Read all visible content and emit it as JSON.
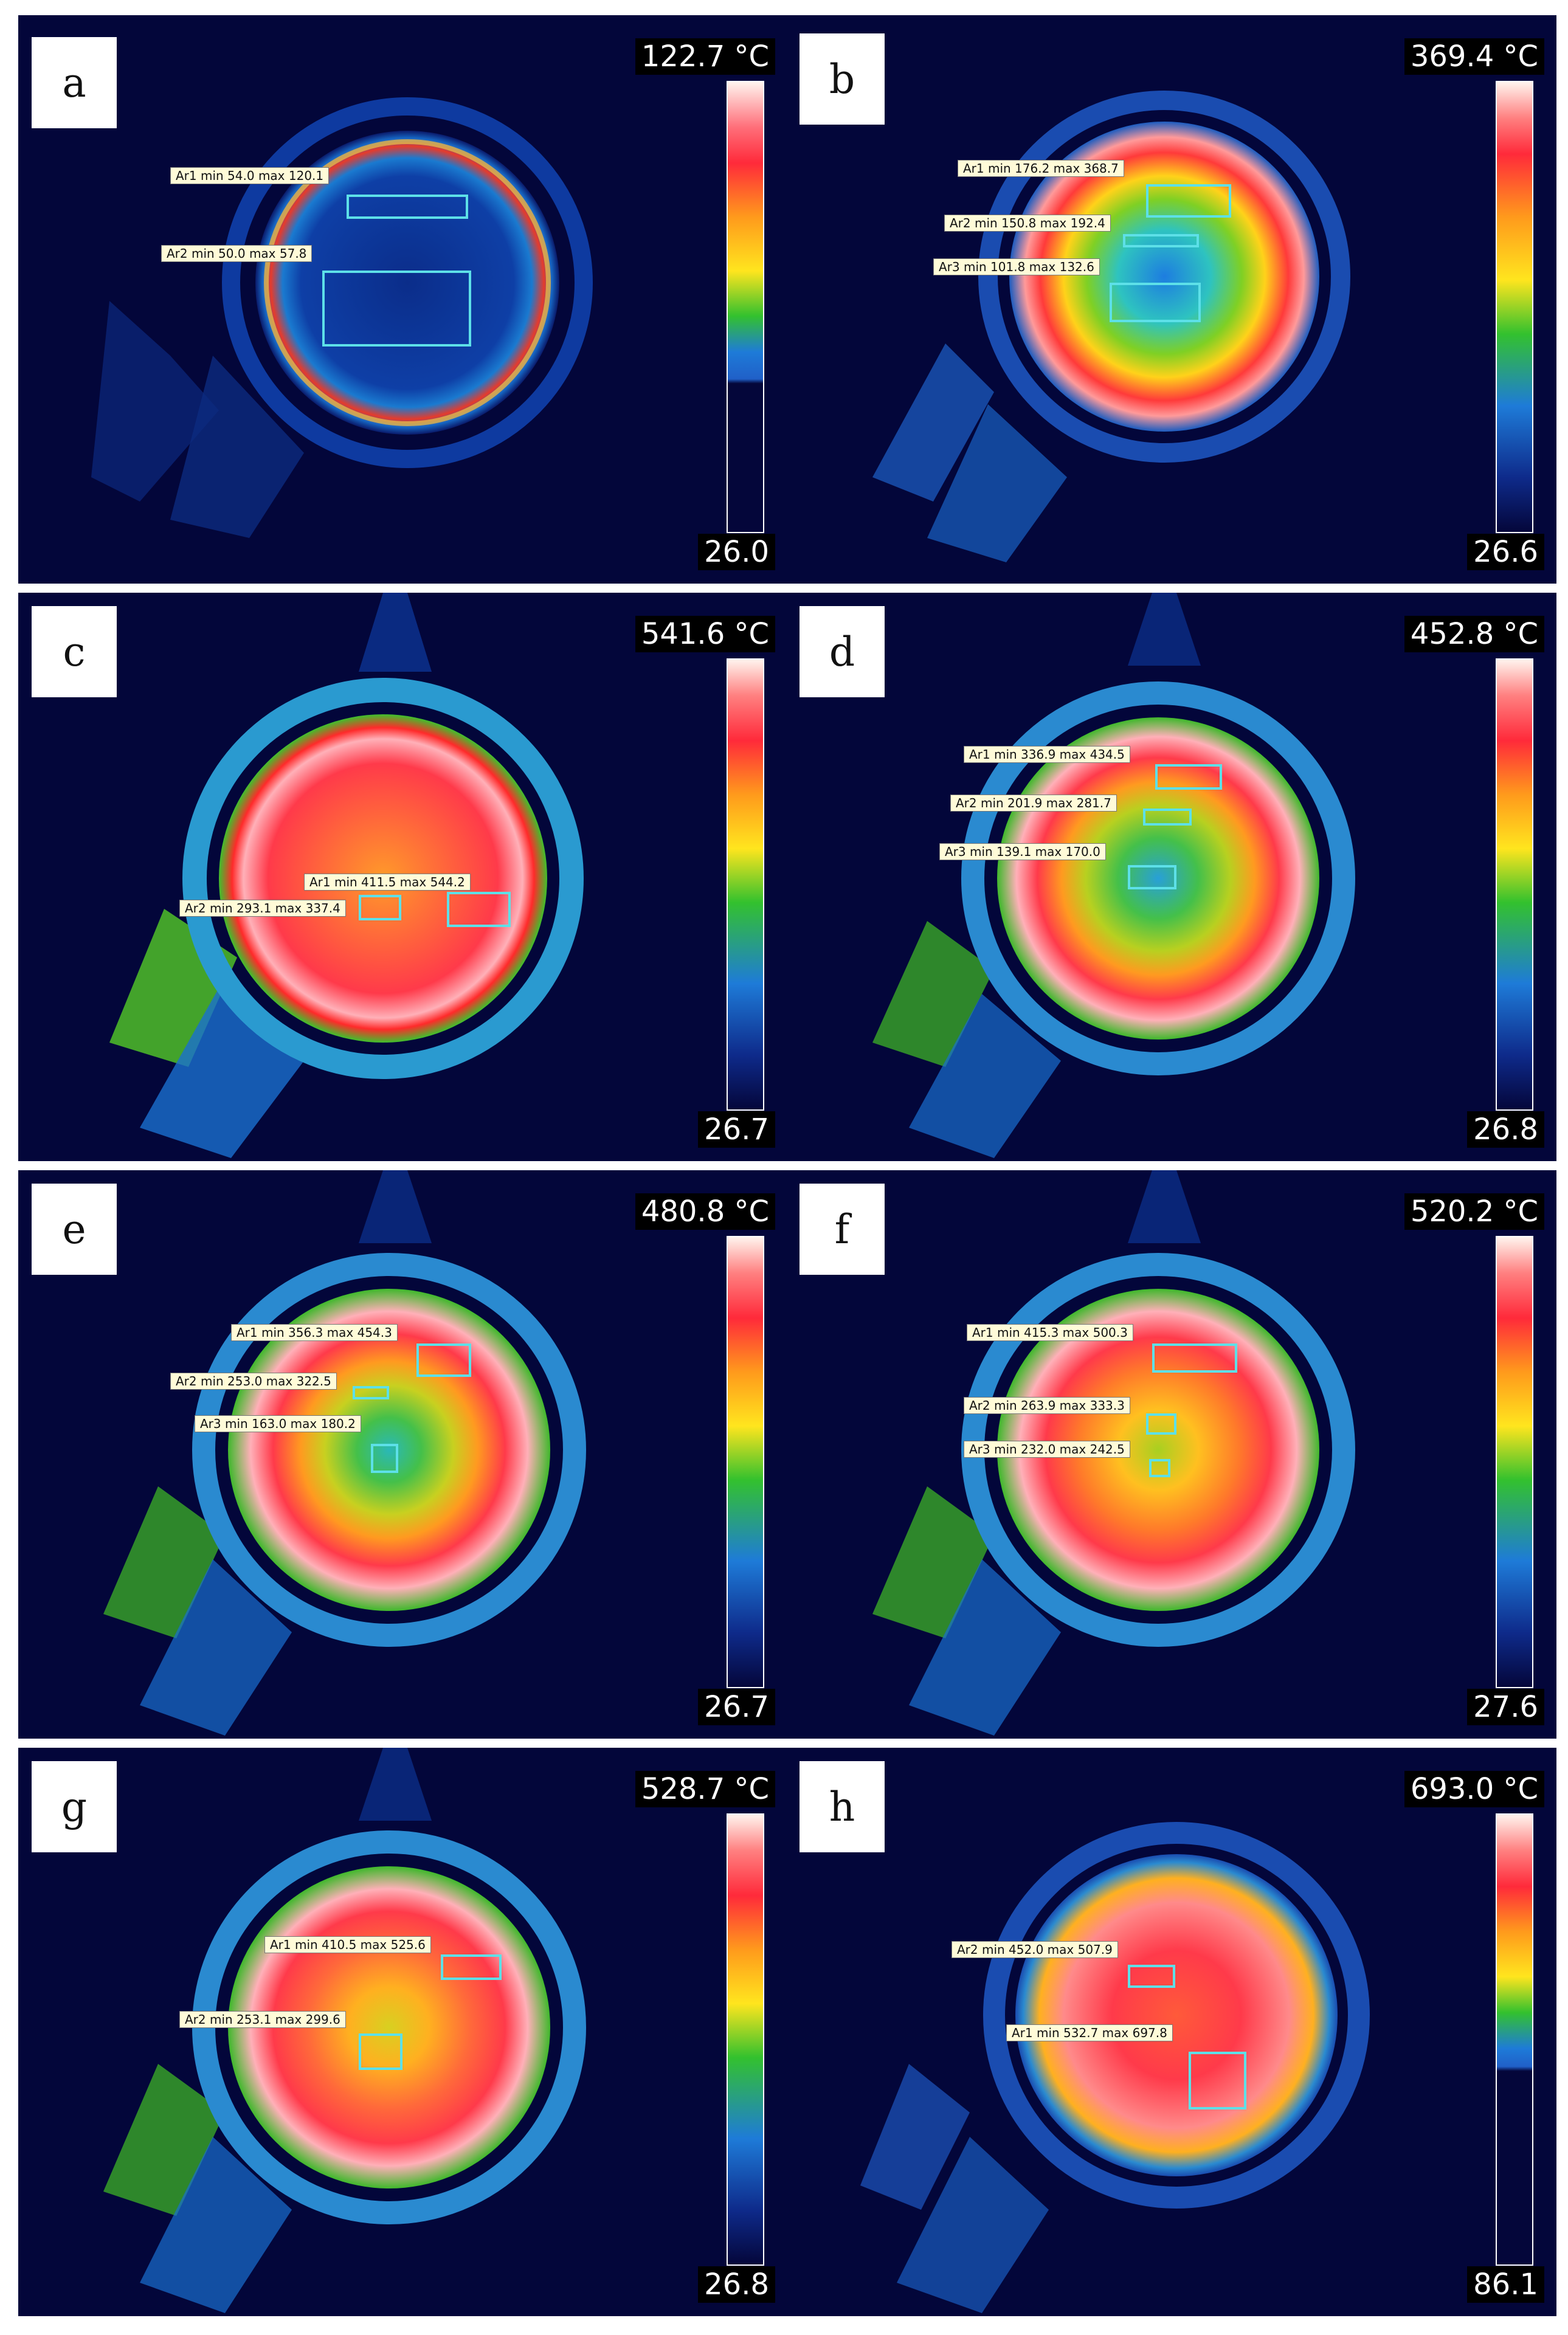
{
  "panels": [
    {
      "letter": "a",
      "scale_max": "122.7 °C",
      "scale_min": "26.0",
      "regions": [
        {
          "text": "Ar1 min 54.0 max 120.1"
        },
        {
          "text": "Ar2 min 50.0 max 57.8"
        }
      ]
    },
    {
      "letter": "b",
      "scale_max": "369.4 °C",
      "scale_min": "26.6",
      "regions": [
        {
          "text": "Ar1 min 176.2 max 368.7"
        },
        {
          "text": "Ar2 min 150.8 max 192.4"
        },
        {
          "text": "Ar3 min 101.8 max 132.6"
        }
      ]
    },
    {
      "letter": "c",
      "scale_max": "541.6 °C",
      "scale_min": "26.7",
      "regions": [
        {
          "text": "Ar1 min 411.5 max 544.2"
        },
        {
          "text": "Ar2 min 293.1 max 337.4"
        }
      ]
    },
    {
      "letter": "d",
      "scale_max": "452.8 °C",
      "scale_min": "26.8",
      "regions": [
        {
          "text": "Ar1 min 336.9 max 434.5"
        },
        {
          "text": "Ar2 min 201.9 max 281.7"
        },
        {
          "text": "Ar3 min 139.1 max 170.0"
        }
      ]
    },
    {
      "letter": "e",
      "scale_max": "480.8 °C",
      "scale_min": "26.7",
      "regions": [
        {
          "text": "Ar1 min 356.3 max 454.3"
        },
        {
          "text": "Ar2 min 253.0 max 322.5"
        },
        {
          "text": "Ar3 min 163.0 max 180.2"
        }
      ]
    },
    {
      "letter": "f",
      "scale_max": "520.2 °C",
      "scale_min": "27.6",
      "regions": [
        {
          "text": "Ar1 min 415.3 max 500.3"
        },
        {
          "text": "Ar2 min 263.9 max 333.3"
        },
        {
          "text": "Ar3 min 232.0 max 242.5"
        }
      ]
    },
    {
      "letter": "g",
      "scale_max": "528.7 °C",
      "scale_min": "26.8",
      "regions": [
        {
          "text": "Ar1 min 410.5 max 525.6"
        },
        {
          "text": "Ar2 min 253.1 max 299.6"
        }
      ]
    },
    {
      "letter": "h",
      "scale_max": "693.0 °C",
      "scale_min": "86.1",
      "regions": [
        {
          "text": "Ar2 min 452.0 max 507.9"
        },
        {
          "text": "Ar1 min 532.7 max 697.8"
        }
      ]
    }
  ]
}
